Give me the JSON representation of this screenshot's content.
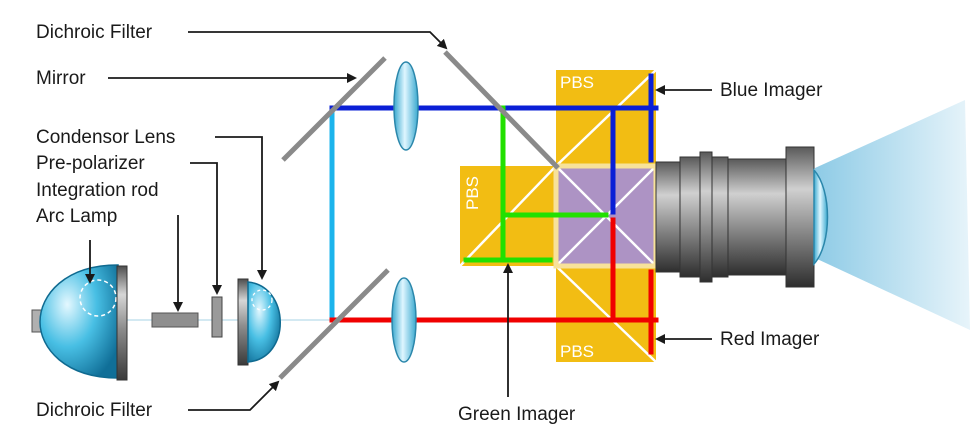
{
  "labels": {
    "dichroic_filter_top": "Dichroic Filter",
    "mirror": "Mirror",
    "condensor_lens": "Condensor Lens",
    "pre_polarizer": "Pre-polarizer",
    "integration_rod": "Integration rod",
    "arc_lamp": "Arc Lamp",
    "dichroic_filter_bottom": "Dichroic Filter",
    "green_imager": "Green Imager",
    "blue_imager": "Blue Imager",
    "red_imager": "Red Imager",
    "pbs_top": "PBS",
    "pbs_left": "PBS",
    "pbs_bottom": "PBS"
  },
  "colors": {
    "blue_beam": "#0a1fd6",
    "cyan_beam": "#1cb4ec",
    "green_beam": "#22e000",
    "red_beam": "#f00000",
    "pbs_prism": "#f2bd13",
    "x_cube": "#ad93c4",
    "lamp_glass": "#3bb6dc",
    "mirror_gray": "#8a8a8a",
    "projection_light": "#a9d6ec"
  }
}
